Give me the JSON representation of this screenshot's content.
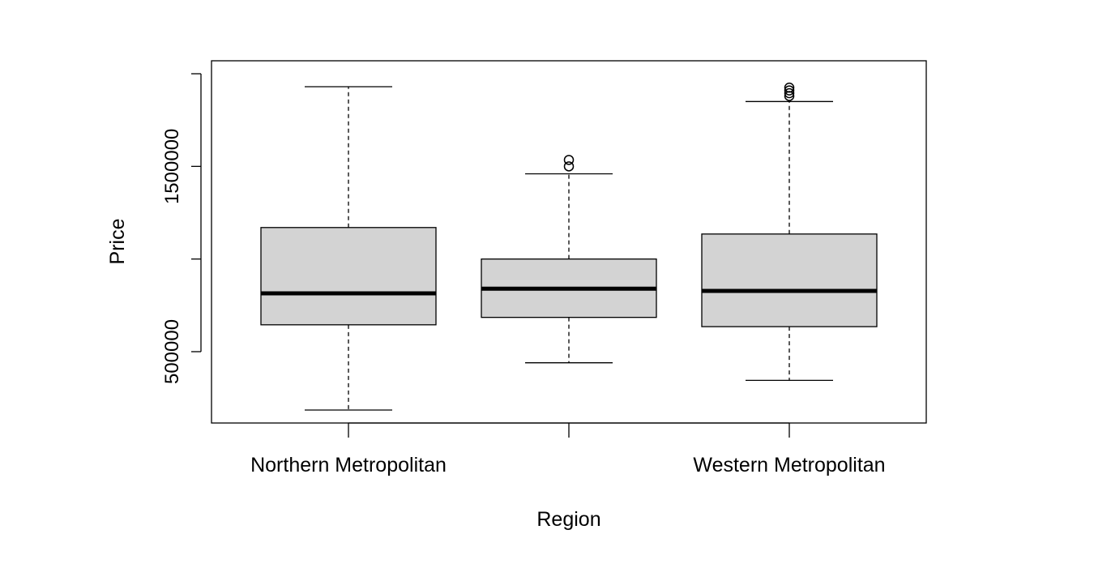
{
  "chart_data": {
    "type": "boxplot",
    "title": "",
    "xlabel": "Region",
    "ylabel": "Price",
    "ylim": [
      115000,
      2070000
    ],
    "yticks": [
      {
        "value": 500000,
        "label": "500000",
        "show_label": true
      },
      {
        "value": 1000000,
        "label": "",
        "show_label": false
      },
      {
        "value": 1500000,
        "label": "1500000",
        "show_label": true
      },
      {
        "value": 2000000,
        "label": "",
        "show_label": false
      }
    ],
    "grid": false,
    "box_fill": "#d3d3d3",
    "line_color": "#000000",
    "categories": [
      {
        "name": "Northern Metropolitan",
        "label_visible": true
      },
      {
        "name": "",
        "label_visible": false
      },
      {
        "name": "Western Metropolitan",
        "label_visible": true
      }
    ],
    "boxes": [
      {
        "whisker_low": 185000,
        "q1": 645000,
        "median": 815000,
        "q3": 1170000,
        "whisker_high": 1930000,
        "outliers": []
      },
      {
        "whisker_low": 440000,
        "q1": 685000,
        "median": 840000,
        "q3": 1000000,
        "whisker_high": 1460000,
        "outliers": [
          1500000,
          1535000
        ]
      },
      {
        "whisker_low": 345000,
        "q1": 635000,
        "median": 828000,
        "q3": 1135000,
        "whisker_high": 1850000,
        "outliers": [
          1880000,
          1895000,
          1910000,
          1925000
        ]
      }
    ]
  }
}
